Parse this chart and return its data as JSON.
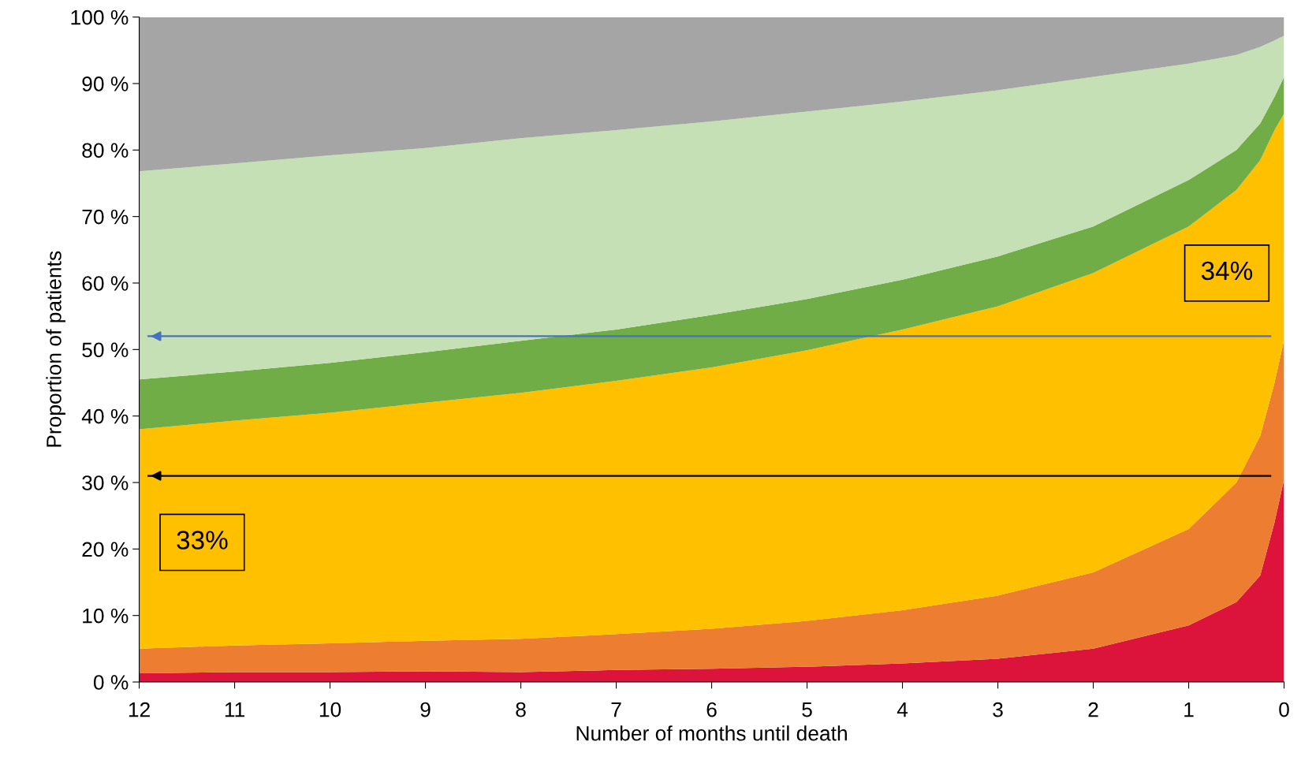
{
  "chart_data": {
    "type": "area",
    "stacked": true,
    "xlabel": "Number of months until death",
    "ylabel": "Proportion of patients",
    "x": [
      12,
      11,
      10,
      9,
      8,
      7,
      6,
      5,
      4,
      3,
      2,
      1,
      0.5,
      0.25,
      0.1,
      0
    ],
    "series": [
      {
        "color": "#dc143c",
        "values": [
          1.3,
          1.5,
          1.5,
          1.6,
          1.5,
          1.8,
          2.0,
          2.3,
          2.8,
          3.5,
          5.0,
          8.5,
          12,
          16,
          24,
          30.5
        ]
      },
      {
        "color": "#ed7d31",
        "values": [
          3.7,
          4.0,
          4.3,
          4.6,
          5.0,
          5.4,
          6.0,
          6.9,
          8.0,
          9.5,
          11.5,
          14.5,
          18,
          21,
          21,
          21
        ]
      },
      {
        "color": "#ffc000",
        "values": [
          33,
          33.8,
          34.7,
          35.8,
          37,
          38.1,
          39.3,
          40.7,
          42.2,
          43.5,
          45,
          45.5,
          44,
          41.5,
          38,
          34
        ]
      },
      {
        "color": "#70ad47",
        "values": [
          7.5,
          7.4,
          7.5,
          7.6,
          7.8,
          7.7,
          7.9,
          7.7,
          7.5,
          7.5,
          7,
          7,
          6,
          5.5,
          5,
          5.5
        ]
      },
      {
        "color": "#c5e0b4",
        "values": [
          31.3,
          31.3,
          31.2,
          30.7,
          30.5,
          30,
          29.1,
          28.2,
          26.8,
          25,
          22.5,
          17.5,
          14.3,
          11.5,
          8.5,
          6.2
        ]
      },
      {
        "color": "#a5a5a5",
        "values": [
          23.2,
          22,
          20.8,
          19.7,
          18.2,
          17,
          15.7,
          14.2,
          12.7,
          11,
          9,
          7,
          5.7,
          4.5,
          3.5,
          2.8
        ]
      }
    ],
    "xlim": [
      12,
      0
    ],
    "xticks": [
      12,
      11,
      10,
      9,
      8,
      7,
      6,
      5,
      4,
      3,
      2,
      1,
      0
    ],
    "ylim": [
      0,
      100
    ],
    "yticks": [
      {
        "value": 0,
        "label": "0 %"
      },
      {
        "value": 10,
        "label": "10 %"
      },
      {
        "value": 20,
        "label": "20 %"
      },
      {
        "value": 30,
        "label": "30 %"
      },
      {
        "value": 40,
        "label": "40 %"
      },
      {
        "value": 50,
        "label": "50 %"
      },
      {
        "value": 60,
        "label": "60 %"
      },
      {
        "value": 70,
        "label": "70 %"
      },
      {
        "value": 80,
        "label": "80 %"
      },
      {
        "value": 90,
        "label": "90 %"
      },
      {
        "value": 100,
        "label": "100 %"
      }
    ],
    "ref_lines": [
      {
        "axis": "y",
        "value": 52,
        "color": "#4472c4"
      },
      {
        "axis": "y",
        "value": 31,
        "color": "#000000"
      }
    ],
    "annotations": [
      "34%",
      "33%"
    ],
    "grid": false,
    "legend": false
  }
}
